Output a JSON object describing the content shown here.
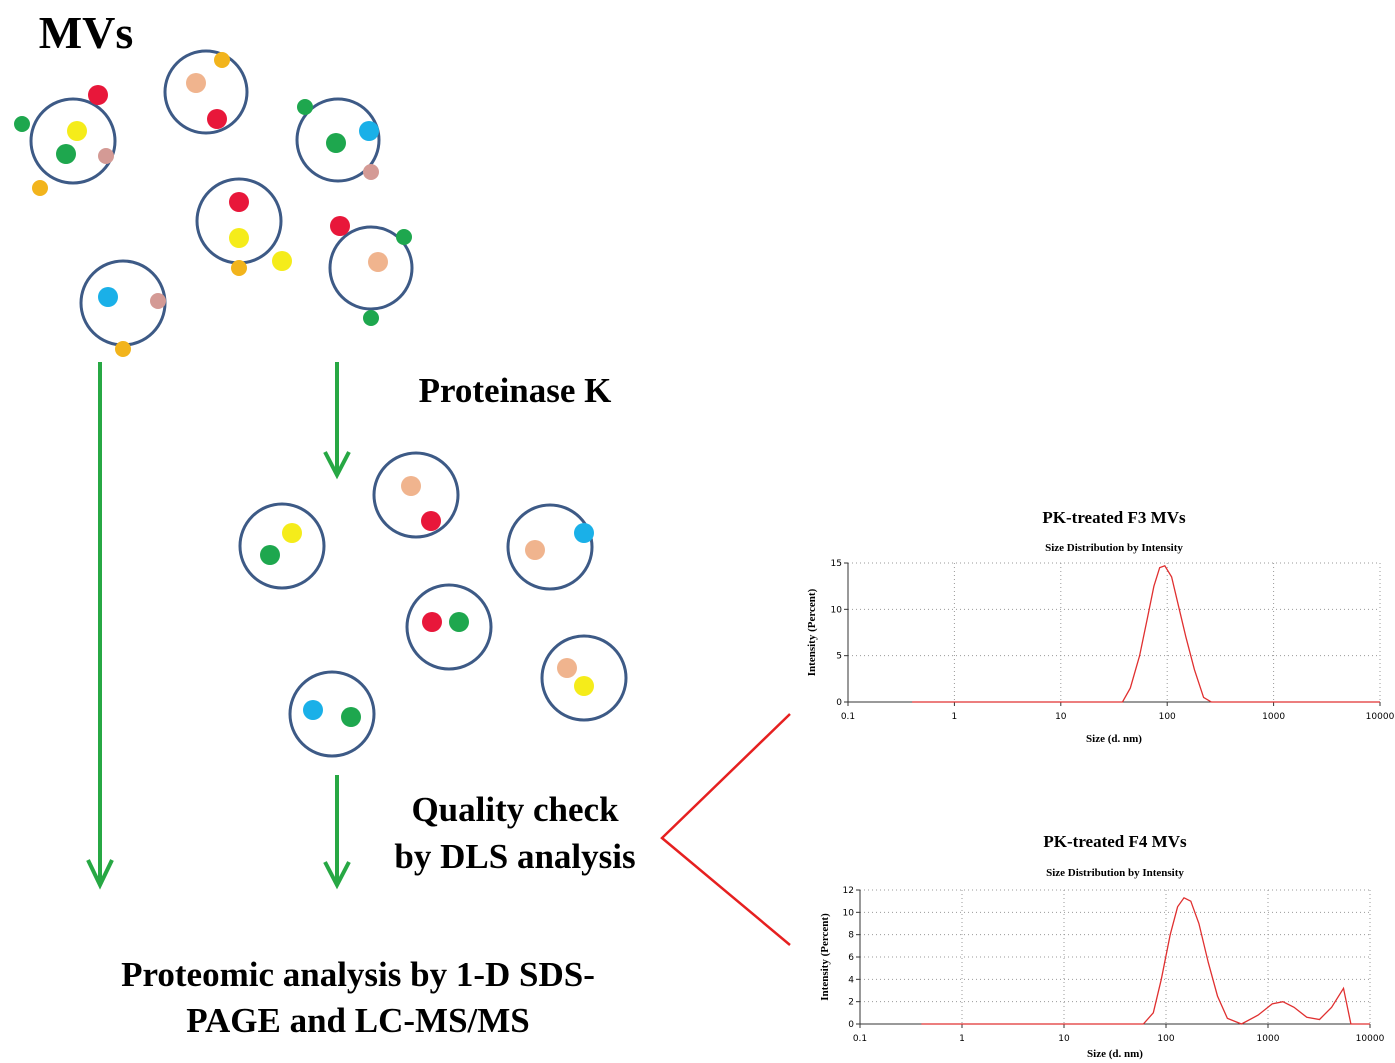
{
  "labels": {
    "mvs": "MVs",
    "proteinase": "Proteinase K",
    "quality": [
      "Quality check",
      "by DLS analysis"
    ],
    "proteomic": [
      "Proteomic analysis by 1-D SDS-",
      "PAGE and LC-MS/MS"
    ]
  },
  "chart_data": [
    {
      "type": "line",
      "title": "PK-treated F3 MVs",
      "subtitle": "Size Distribution by Intensity",
      "x_label": "Size (d. nm)",
      "y_label": "Intensity (Percent)",
      "x_scale": "log",
      "grid": true,
      "color": "#e03030",
      "xlim": [
        0.1,
        10000
      ],
      "xticks": [
        0.1,
        1,
        10,
        100,
        1000,
        10000
      ],
      "ylim": [
        0,
        15
      ],
      "yticks": [
        0,
        5,
        10,
        15
      ],
      "x": [
        0.4,
        38,
        45,
        55,
        65,
        75,
        85,
        95,
        110,
        130,
        150,
        180,
        220,
        260,
        10000
      ],
      "values": [
        0,
        0,
        1.5,
        5,
        9,
        12.5,
        14.5,
        14.7,
        13.5,
        10,
        7,
        3.5,
        0.5,
        0,
        0
      ]
    },
    {
      "type": "line",
      "title": "PK-treated F4 MVs",
      "subtitle": "Size Distribution by Intensity",
      "x_label": "Size (d. nm)",
      "y_label": "Intensity (Percent)",
      "x_scale": "log",
      "grid": true,
      "color": "#e03030",
      "xlim": [
        0.1,
        10000
      ],
      "xticks": [
        0.1,
        1,
        10,
        100,
        1000,
        10000
      ],
      "ylim": [
        0,
        12
      ],
      "yticks": [
        0,
        2,
        4,
        6,
        8,
        10,
        12
      ],
      "x": [
        0.4,
        60,
        75,
        90,
        110,
        130,
        150,
        175,
        210,
        260,
        320,
        400,
        550,
        800,
        1100,
        1400,
        1800,
        2400,
        3200,
        4200,
        5500,
        6500,
        10000
      ],
      "values": [
        0,
        0,
        1,
        4,
        8,
        10.5,
        11.3,
        11,
        9,
        5.5,
        2.5,
        0.5,
        0,
        0.8,
        1.8,
        2,
        1.5,
        0.6,
        0.4,
        1.5,
        3.2,
        0,
        0
      ]
    }
  ]
}
